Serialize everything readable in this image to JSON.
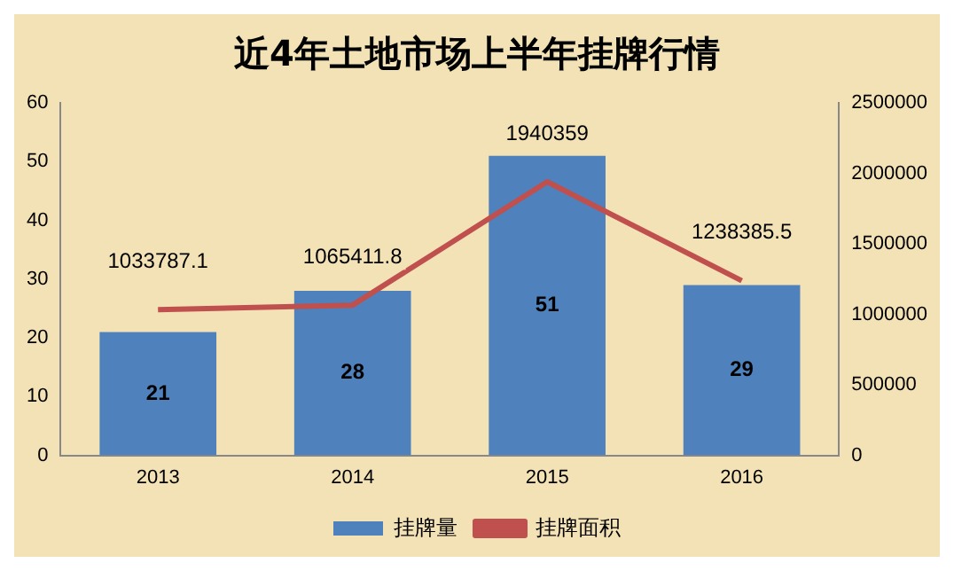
{
  "chart_data": {
    "type": "bar",
    "title": "近4年土地市场上半年挂牌行情",
    "categories": [
      "2013",
      "2014",
      "2015",
      "2016"
    ],
    "series": [
      {
        "name": "挂牌量",
        "color": "#4f81bd",
        "values": [
          21,
          28,
          51,
          29
        ]
      },
      {
        "name": "挂牌面积",
        "type": "line",
        "axis": "y2",
        "color": "#c0504d",
        "values": [
          1033787.1,
          1065411.8,
          1940359,
          1238385.5
        ]
      }
    ],
    "ylim": [
      0,
      60
    ],
    "yticks": [
      0,
      10,
      20,
      30,
      40,
      50,
      60
    ],
    "y2lim": [
      0,
      2500000
    ],
    "y2ticks": [
      0,
      500000,
      1000000,
      1500000,
      2000000,
      2500000
    ],
    "data_labels": true,
    "grid": false,
    "legend": "bottom",
    "marker": "none",
    "line_style": "solid"
  }
}
